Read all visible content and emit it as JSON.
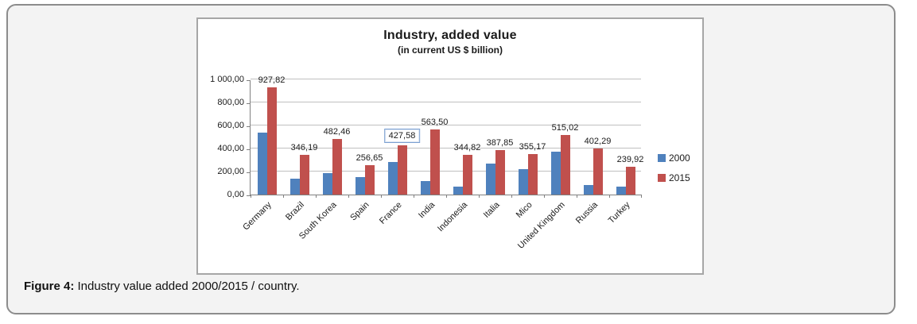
{
  "figure": {
    "caption_label": "Figure 4:",
    "caption_text": " Industry value added 2000/2015 / country."
  },
  "colors": {
    "series_2000": "#4f81bd",
    "series_2015": "#c0504d",
    "selected_label_border": "#7a9fd1",
    "panel_background": "#f3f3f3",
    "panel_border": "#8c8c8c",
    "gridline": "#bfbfbf"
  },
  "chart_data": {
    "type": "bar",
    "title": "Industry, added value",
    "subtitle": "(in current US $ billion)",
    "xlabel": "",
    "ylabel": "",
    "ylim": [
      0,
      1000
    ],
    "grid": true,
    "legend_position": "right",
    "y_ticks": [
      "1 000,00",
      "800,00",
      "600,00",
      "400,00",
      "200,00",
      "0,00"
    ],
    "categories": [
      "Germany",
      "Brazil",
      "South Korea",
      "Spain",
      "France",
      "India",
      "Indonesia",
      "Italia",
      "Mico",
      "United Kingdom",
      "Russia",
      "Turkey"
    ],
    "series": [
      {
        "name": "2000",
        "color": "#4f81bd",
        "labels_shown": false,
        "values": [
          540,
          135,
          185,
          155,
          280,
          115,
          70,
          270,
          220,
          370,
          85,
          70
        ]
      },
      {
        "name": "2015",
        "color": "#c0504d",
        "labels_shown": true,
        "values": [
          927.82,
          346.19,
          482.46,
          256.65,
          427.58,
          563.5,
          344.82,
          387.85,
          355.17,
          515.02,
          402.29,
          239.92
        ],
        "labels": [
          "927,82",
          "346,19",
          "482,46",
          "256,65",
          "427,58",
          "563,50",
          "344,82",
          "387,85",
          "355,17",
          "515,02",
          "402,29",
          "239,92"
        ]
      }
    ],
    "highlighted_label": {
      "series": "2015",
      "category": "France",
      "text": "427,58"
    }
  }
}
